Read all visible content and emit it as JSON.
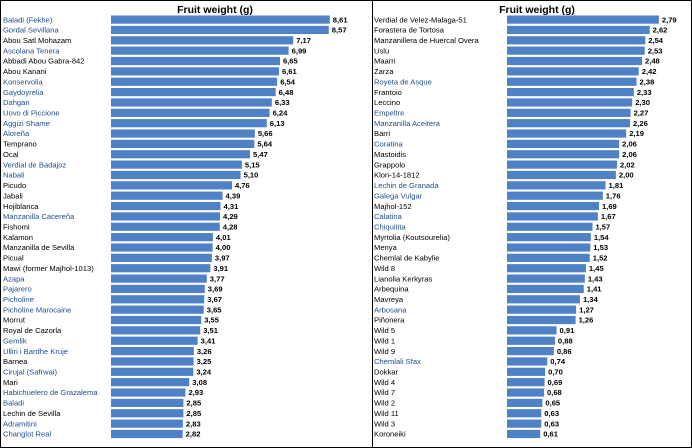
{
  "chart_data": [
    {
      "type": "bar",
      "orientation": "horizontal",
      "title": "Fruit weight (g)",
      "xlabel": "",
      "ylabel": "",
      "xlim": [
        0,
        9
      ],
      "grid": false,
      "colors": {
        "bar": "#4f81c6",
        "label_default": "#000000",
        "label_highlight": "#1f4e8c"
      },
      "categories": [
        "Baladi (Fekhe)",
        "Gordal Sevillana",
        "Abou Satl Mohazam",
        "Ascolana Tenera",
        "Abbadi Abou Gabra-842",
        "Abou Kanani",
        "Konservolia",
        "Gaydoyrelia",
        "Dahgan",
        "Uovo di Piccione",
        "Aggizi Shame",
        "Aloreña",
        "Temprano",
        "Ocal",
        "Verdial de Badajoz",
        "Nabali",
        "Picudo",
        "Jabali",
        "Hojiblanca",
        "Manzanilla Cacereña",
        "Fishomi",
        "Kalamon",
        "Manzanilla de Sevilla",
        "Picual",
        "Mawi (former Majhol-1013)",
        "Azapa",
        "Pajarero",
        "Picholine",
        "Picholine Marocaine",
        "Morrut",
        "Royal de Cazorla",
        "Gemlik",
        "Ulliri i Bardhe Kruje",
        "Barnea",
        "Cirujal (Safrwai)",
        "Mari",
        "Habichuelero de Grazalema",
        "Baladi",
        "Lechin de Sevilla",
        "Adramitini",
        "Changlot Real"
      ],
      "values": [
        8.61,
        8.57,
        7.17,
        6.99,
        6.65,
        6.61,
        6.54,
        6.48,
        6.33,
        6.24,
        6.13,
        5.66,
        5.64,
        5.47,
        5.15,
        5.1,
        4.76,
        4.39,
        4.31,
        4.29,
        4.28,
        4.01,
        4.0,
        3.97,
        3.91,
        3.77,
        3.69,
        3.67,
        3.65,
        3.55,
        3.51,
        3.41,
        3.26,
        3.25,
        3.24,
        3.08,
        2.93,
        2.85,
        2.85,
        2.83,
        2.82
      ],
      "value_labels": [
        "8,61",
        "8,57",
        "7,17",
        "6,99",
        "6,65",
        "6,61",
        "6,54",
        "6,48",
        "6,33",
        "6,24",
        "6,13",
        "5,66",
        "5,64",
        "5,47",
        "5,15",
        "5,10",
        "4,76",
        "4,39",
        "4,31",
        "4,29",
        "4,28",
        "4,01",
        "4,00",
        "3,97",
        "3,91",
        "3,77",
        "3,69",
        "3,67",
        "3,65",
        "3,55",
        "3,51",
        "3,41",
        "3,26",
        "3,25",
        "3,24",
        "3,08",
        "2,93",
        "2,85",
        "2,85",
        "2,83",
        "2,82"
      ],
      "highlighted": [
        true,
        true,
        false,
        true,
        false,
        false,
        true,
        true,
        true,
        true,
        true,
        true,
        false,
        false,
        true,
        true,
        false,
        false,
        false,
        true,
        false,
        false,
        false,
        false,
        false,
        true,
        true,
        true,
        true,
        false,
        false,
        true,
        true,
        false,
        true,
        false,
        true,
        true,
        false,
        true,
        true
      ]
    },
    {
      "type": "bar",
      "orientation": "horizontal",
      "title": "Fruit weight (g)",
      "xlabel": "",
      "ylabel": "",
      "xlim": [
        0,
        3
      ],
      "grid": false,
      "colors": {
        "bar": "#4f81c6",
        "label_default": "#000000",
        "label_highlight": "#1f4e8c"
      },
      "categories": [
        "Verdial de Velez-Malaga-51",
        "Forastera de Tortosa",
        "Manzanillera de Huercal Overa",
        "Uslu",
        "Maarri",
        "Zarza",
        "Royeta de Asque",
        "Frantoio",
        "Leccino",
        "Empeltre",
        "Manzanilla Aceitera",
        "Barri",
        "Coratina",
        "Mastoidis",
        "Grappolo",
        "Klon-14-1812",
        "Lechin de Granada",
        "Galega Vulgar",
        "Majhol-152",
        "Calatina",
        "Chiquitita",
        "Myrtolia (Koutsourelia)",
        "Menya",
        "Chemlal de Kabylie",
        "Wild 8",
        "Lianolia Kerkyras",
        "Arbequina",
        "Mavreya",
        "Arbosana",
        "Piñonera",
        "Wild 5",
        "Wild 1",
        "Wild 9",
        "Chemlali Sfax",
        "Dokkar",
        "Wild 4",
        "Wild 7",
        "Wild 2",
        "Wild 11",
        "Wild 3",
        "Koroneiki"
      ],
      "values": [
        2.79,
        2.62,
        2.54,
        2.53,
        2.48,
        2.42,
        2.38,
        2.33,
        2.3,
        2.27,
        2.26,
        2.19,
        2.06,
        2.06,
        2.02,
        2.0,
        1.81,
        1.76,
        1.69,
        1.67,
        1.57,
        1.54,
        1.53,
        1.52,
        1.45,
        1.43,
        1.41,
        1.34,
        1.27,
        1.26,
        0.91,
        0.88,
        0.86,
        0.74,
        0.7,
        0.69,
        0.68,
        0.65,
        0.63,
        0.63,
        0.61
      ],
      "value_labels": [
        "2,79",
        "2,62",
        "2,54",
        "2,53",
        "2,48",
        "2,42",
        "2,38",
        "2,33",
        "2,30",
        "2,27",
        "2,26",
        "2,19",
        "2,06",
        "2,06",
        "2,02",
        "2,00",
        "1,81",
        "1,76",
        "1,69",
        "1,67",
        "1,57",
        "1,54",
        "1,53",
        "1,52",
        "1,45",
        "1,43",
        "1,41",
        "1,34",
        "1,27",
        "1,26",
        "0,91",
        "0,88",
        "0,86",
        "0,74",
        "0,70",
        "0,69",
        "0,68",
        "0,65",
        "0,63",
        "0,63",
        "0,61"
      ],
      "highlighted": [
        false,
        false,
        false,
        false,
        false,
        false,
        true,
        false,
        false,
        true,
        true,
        false,
        true,
        false,
        false,
        false,
        true,
        true,
        false,
        true,
        true,
        false,
        false,
        false,
        false,
        false,
        false,
        false,
        true,
        false,
        false,
        false,
        false,
        true,
        false,
        false,
        false,
        false,
        false,
        false,
        false
      ]
    }
  ]
}
